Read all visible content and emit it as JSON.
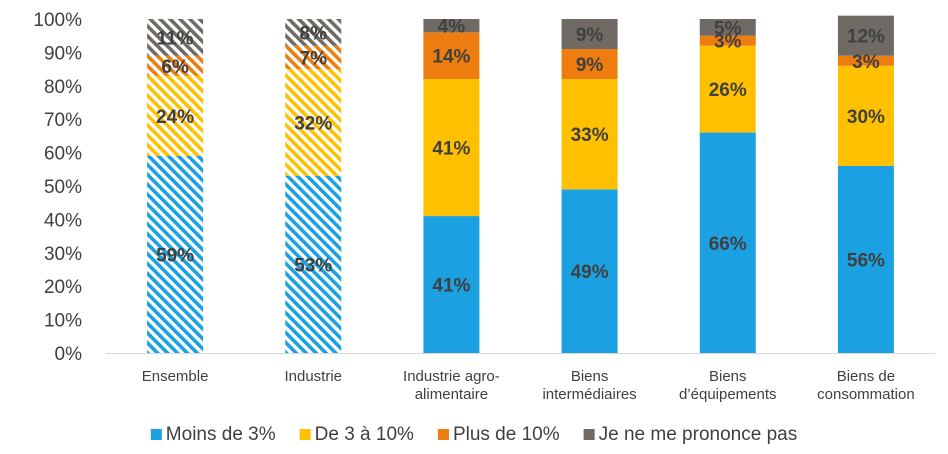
{
  "chart_data": {
    "type": "bar",
    "stacked": true,
    "percent": true,
    "categories": [
      [
        "Ensemble"
      ],
      [
        "Industrie"
      ],
      [
        "Industrie agro-",
        "alimentaire"
      ],
      [
        "Biens",
        "intermédiaires"
      ],
      [
        "Biens",
        "d’équipements"
      ],
      [
        "Biens de",
        "consommation"
      ]
    ],
    "hatched_categories": [
      0,
      1
    ],
    "ylim": [
      0,
      100
    ],
    "yticks": [
      "0%",
      "10%",
      "20%",
      "30%",
      "40%",
      "50%",
      "60%",
      "70%",
      "80%",
      "90%",
      "100%"
    ],
    "grid": false,
    "legend_position": "bottom",
    "series": [
      {
        "name": "Moins de 3%",
        "color": "#1ba1e2",
        "values": [
          59,
          53,
          41,
          49,
          66,
          56
        ],
        "labels": [
          "59%",
          "53%",
          "41%",
          "49%",
          "66%",
          "56%"
        ]
      },
      {
        "name": "De 3 à 10%",
        "color": "#ffc000",
        "values": [
          24,
          32,
          41,
          33,
          26,
          30
        ],
        "labels": [
          "24%",
          "32%",
          "41%",
          "33%",
          "26%",
          "30%"
        ]
      },
      {
        "name": "Plus de 10%",
        "color": "#ed7d0f",
        "values": [
          6,
          7,
          14,
          9,
          3,
          3
        ],
        "labels": [
          "6%",
          "7%",
          "14%",
          "9%",
          "3%",
          "3%"
        ]
      },
      {
        "name": "Je ne me prononce pas",
        "color": "#6f6a64",
        "values": [
          11,
          8,
          4,
          9,
          5,
          12
        ],
        "labels": [
          "11%",
          "8%",
          "4%",
          "9%",
          "5%",
          "12%"
        ]
      }
    ]
  }
}
